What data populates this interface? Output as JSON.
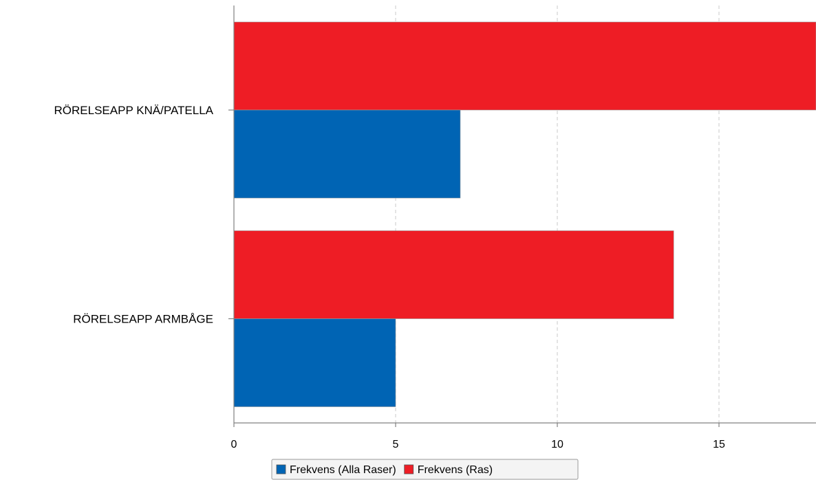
{
  "chart_data": {
    "type": "bar",
    "orientation": "horizontal",
    "categories": [
      "RÖRELSEAPP KNÄ/PATELLA",
      "RÖRELSEAPP ARMBÅGE"
    ],
    "series": [
      {
        "name": "Frekvens (Alla Raser)",
        "color": "#0064b4",
        "values": [
          7,
          5
        ]
      },
      {
        "name": "Frekvens (Ras)",
        "color": "#ee1d25",
        "values": [
          18,
          13.6
        ]
      }
    ],
    "xlim": [
      0,
      18
    ],
    "xticks": [
      0,
      5,
      10,
      15
    ],
    "xtick_labels": [
      "0",
      "5",
      "10",
      "15"
    ],
    "grid": true,
    "legend_position": "bottom"
  }
}
